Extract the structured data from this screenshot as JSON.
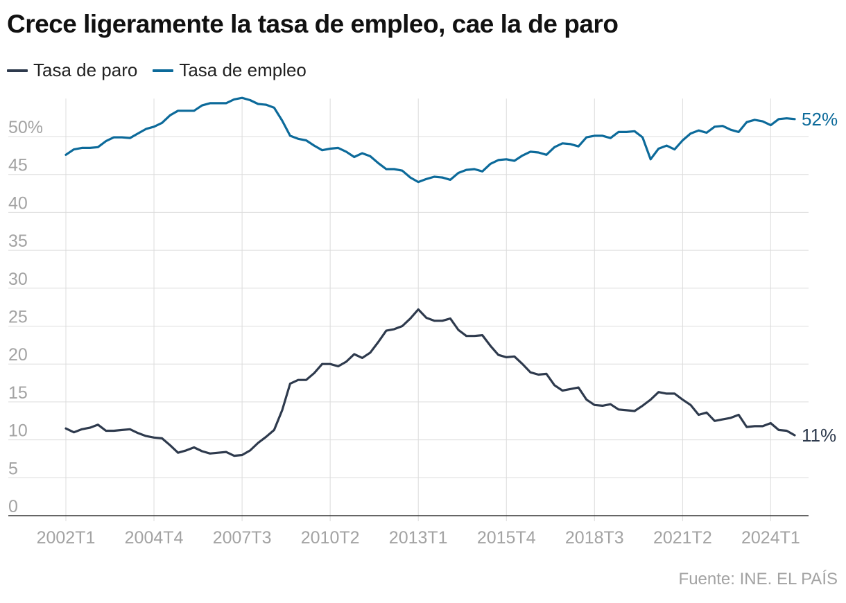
{
  "title": "Crece ligeramente la tasa de empleo, cae la de paro",
  "source": "Fuente: INE. EL PAÍS",
  "colors": {
    "paro": "#2e3a4d",
    "empleo": "#0c6a9a",
    "grid": "#dcdcdc",
    "ticks": "#a3a3a3"
  },
  "chart_data": {
    "type": "line",
    "title": "Crece ligeramente la tasa de empleo, cae la de paro",
    "xlabel": "",
    "ylabel": "",
    "ylim": [
      0,
      55
    ],
    "grid": true,
    "legend_position": "top-left",
    "x_range": [
      "2002T1",
      "2024T3"
    ],
    "x_ticks": [
      "2002T1",
      "2004T4",
      "2007T3",
      "2010T2",
      "2013T1",
      "2015T4",
      "2018T3",
      "2021T2",
      "2024T1"
    ],
    "y_ticks": [
      0,
      5,
      10,
      15,
      20,
      25,
      30,
      35,
      40,
      45,
      50
    ],
    "y_tick_labels": [
      "0",
      "5",
      "10",
      "15",
      "20",
      "25",
      "30",
      "35",
      "40",
      "45",
      "50%"
    ],
    "series": [
      {
        "name": "Tasa de paro",
        "color": "#2e3a4d",
        "end_label": "11%",
        "values": [
          11.5,
          11.0,
          11.4,
          11.6,
          12.0,
          11.2,
          11.2,
          11.3,
          11.4,
          10.9,
          10.5,
          10.3,
          10.2,
          9.3,
          8.3,
          8.6,
          9.0,
          8.5,
          8.2,
          8.3,
          8.4,
          7.9,
          8.0,
          8.6,
          9.6,
          10.4,
          11.3,
          13.9,
          17.4,
          17.9,
          17.9,
          18.8,
          20.0,
          20.0,
          19.7,
          20.3,
          21.3,
          20.8,
          21.5,
          22.9,
          24.4,
          24.6,
          25.0,
          26.0,
          27.2,
          26.1,
          25.7,
          25.7,
          26.0,
          24.5,
          23.7,
          23.7,
          23.8,
          22.4,
          21.2,
          20.9,
          21.0,
          20.0,
          18.9,
          18.6,
          18.7,
          17.2,
          16.5,
          16.7,
          16.9,
          15.3,
          14.6,
          14.5,
          14.7,
          14.0,
          13.9,
          13.8,
          14.5,
          15.3,
          16.3,
          16.1,
          16.1,
          15.3,
          14.6,
          13.3,
          13.6,
          12.5,
          12.7,
          12.9,
          13.3,
          11.7,
          11.8,
          11.8,
          12.2,
          11.3,
          11.2,
          10.6
        ]
      },
      {
        "name": "Tasa de empleo",
        "color": "#0c6a9a",
        "end_label": "52%",
        "values": [
          47.6,
          48.3,
          48.5,
          48.5,
          48.6,
          49.4,
          49.9,
          49.9,
          49.8,
          50.4,
          51.0,
          51.3,
          51.8,
          52.8,
          53.4,
          53.4,
          53.4,
          54.1,
          54.4,
          54.4,
          54.4,
          54.9,
          55.1,
          54.8,
          54.3,
          54.2,
          53.8,
          52.1,
          50.1,
          49.7,
          49.5,
          48.8,
          48.2,
          48.4,
          48.5,
          48.0,
          47.3,
          47.8,
          47.4,
          46.5,
          45.7,
          45.7,
          45.5,
          44.6,
          44.0,
          44.4,
          44.7,
          44.6,
          44.3,
          45.2,
          45.6,
          45.7,
          45.4,
          46.4,
          46.9,
          47.0,
          46.8,
          47.5,
          48.0,
          47.9,
          47.6,
          48.6,
          49.1,
          49.0,
          48.7,
          49.9,
          50.1,
          50.1,
          49.8,
          50.6,
          50.6,
          50.7,
          49.9,
          47.0,
          48.4,
          48.8,
          48.3,
          49.5,
          50.4,
          50.8,
          50.5,
          51.3,
          51.4,
          50.9,
          50.6,
          51.9,
          52.2,
          52.0,
          51.5,
          52.3,
          52.4,
          52.3
        ]
      }
    ]
  }
}
